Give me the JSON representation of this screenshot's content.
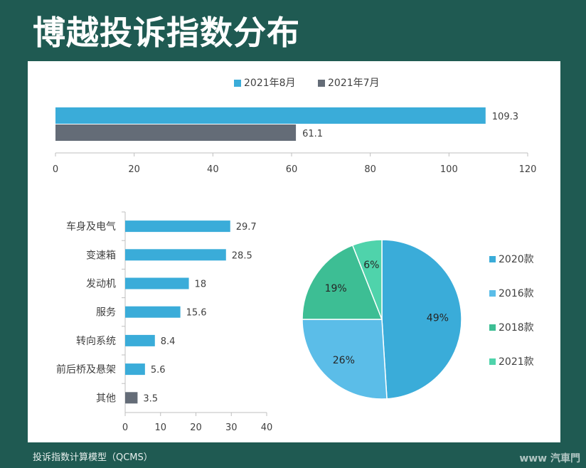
{
  "page": {
    "title": "博越投诉指数分布",
    "footer": "投诉指数计算模型（QCMS）",
    "watermark": "www 汽車門"
  },
  "chart_data": [
    {
      "type": "bar",
      "orientation": "horizontal",
      "series": [
        {
          "name": "2021年8月",
          "values": [
            109.3
          ],
          "color": "#3aacd9"
        },
        {
          "name": "2021年7月",
          "values": [
            61.1
          ],
          "color": "#646c77"
        }
      ],
      "xlim": [
        0,
        120
      ],
      "xticks": [
        0,
        20,
        40,
        60,
        80,
        100,
        120
      ],
      "legend": "top-center"
    },
    {
      "type": "bar",
      "orientation": "horizontal",
      "categories": [
        "车身及电气",
        "变速箱",
        "发动机",
        "服务",
        "转向系统",
        "前后桥及悬架",
        "其他"
      ],
      "values": [
        29.7,
        28.5,
        18,
        15.6,
        8.4,
        5.6,
        3.5
      ],
      "colors": [
        "#3aacd9",
        "#3aacd9",
        "#3aacd9",
        "#3aacd9",
        "#3aacd9",
        "#3aacd9",
        "#646c77"
      ],
      "xlim": [
        0,
        40
      ],
      "xticks": [
        0,
        10,
        20,
        30,
        40
      ]
    },
    {
      "type": "pie",
      "slices": [
        {
          "label": "2020款",
          "value": 49,
          "text": "49%",
          "color": "#3aacd9"
        },
        {
          "label": "2016款",
          "value": 26,
          "text": "26%",
          "color": "#5bbde8"
        },
        {
          "label": "2018款",
          "value": 19,
          "text": "19%",
          "color": "#3dbe94"
        },
        {
          "label": "2021款",
          "value": 6,
          "text": "6%",
          "color": "#4fd3ab"
        }
      ],
      "legend": "right"
    }
  ]
}
